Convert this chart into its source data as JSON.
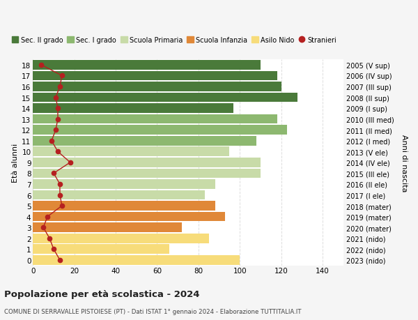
{
  "ages": [
    0,
    1,
    2,
    3,
    4,
    5,
    6,
    7,
    8,
    9,
    10,
    11,
    12,
    13,
    14,
    15,
    16,
    17,
    18
  ],
  "bar_values": [
    100,
    66,
    85,
    72,
    93,
    88,
    83,
    88,
    110,
    110,
    95,
    108,
    123,
    118,
    97,
    128,
    120,
    118,
    110
  ],
  "stranieri_values": [
    13,
    10,
    8,
    5,
    7,
    14,
    13,
    13,
    10,
    18,
    12,
    9,
    11,
    12,
    12,
    11,
    13,
    14,
    4
  ],
  "bar_colors": [
    "#f7dc7a",
    "#f7dc7a",
    "#f7dc7a",
    "#e08838",
    "#e08838",
    "#e08838",
    "#c8dba8",
    "#c8dba8",
    "#c8dba8",
    "#c8dba8",
    "#c8dba8",
    "#8db870",
    "#8db870",
    "#8db870",
    "#4a7a3a",
    "#4a7a3a",
    "#4a7a3a",
    "#4a7a3a",
    "#4a7a3a"
  ],
  "right_labels": [
    "2023 (nido)",
    "2022 (nido)",
    "2021 (nido)",
    "2020 (mater)",
    "2019 (mater)",
    "2018 (mater)",
    "2017 (I ele)",
    "2016 (II ele)",
    "2015 (III ele)",
    "2014 (IV ele)",
    "2013 (V ele)",
    "2012 (I med)",
    "2011 (II med)",
    "2010 (III med)",
    "2009 (I sup)",
    "2008 (II sup)",
    "2007 (III sup)",
    "2006 (IV sup)",
    "2005 (V sup)"
  ],
  "legend_labels": [
    "Sec. II grado",
    "Sec. I grado",
    "Scuola Primaria",
    "Scuola Infanzia",
    "Asilo Nido",
    "Stranieri"
  ],
  "legend_colors": [
    "#4a7a3a",
    "#8db870",
    "#c8dba8",
    "#e08838",
    "#f7dc7a",
    "#c0312b"
  ],
  "ylabel_left": "Età alunni",
  "ylabel_right": "Anni di nascita",
  "title1": "Popolazione per età scolastica - 2024",
  "title2": "COMUNE DI SERRAVALLE PISTOIESE (PT) - Dati ISTAT 1° gennaio 2024 - Elaborazione TUTTITALIA.IT",
  "xlim": [
    0,
    150
  ],
  "xticks": [
    0,
    20,
    40,
    60,
    80,
    100,
    120,
    140
  ],
  "background_color": "#f5f5f5",
  "bar_background": "#ffffff",
  "grid_color": "#dddddd",
  "stranieri_color": "#b52020"
}
